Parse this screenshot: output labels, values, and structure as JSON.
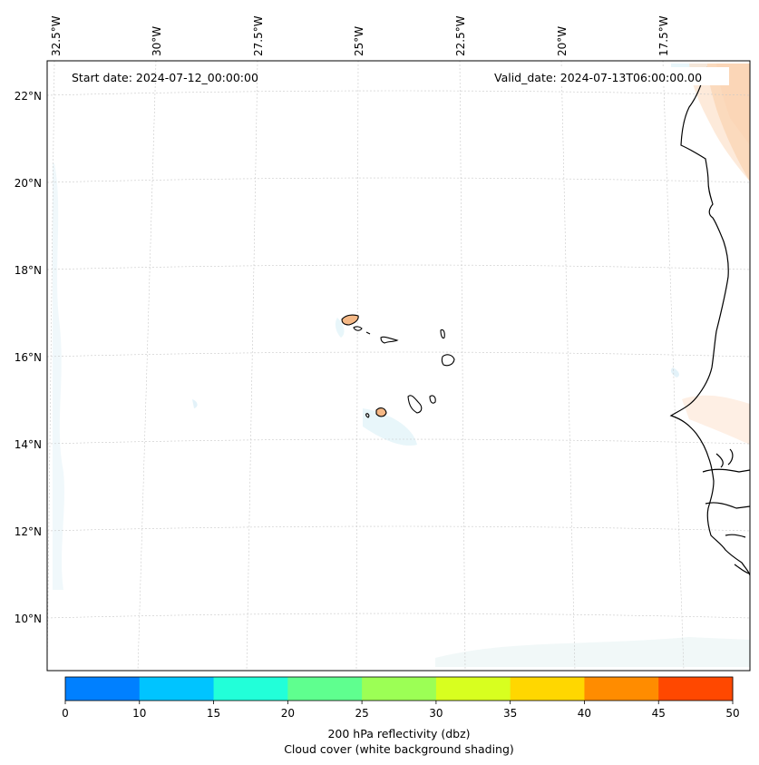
{
  "map": {
    "start_label": "Start date: 2024-07-12_00:00:00",
    "valid_label": "Valid_date: 2024-07-13T06:00:00.00",
    "lon_ticks": [
      "32.5°W",
      "30°W",
      "27.5°W",
      "25°W",
      "22.5°W",
      "20°W",
      "17.5°W"
    ],
    "lat_ticks": [
      "22°N",
      "20°N",
      "18°N",
      "16°N",
      "14°N",
      "12°N",
      "10°N"
    ],
    "grid": true
  },
  "colorbar": {
    "ticks": [
      "0",
      "10",
      "15",
      "20",
      "25",
      "30",
      "35",
      "40",
      "45",
      "50"
    ],
    "colors": [
      "#0080ff",
      "#00c4ff",
      "#22ffd9",
      "#5fff8f",
      "#9cff55",
      "#d8ff1f",
      "#ffd700",
      "#ff8c00",
      "#ff4800"
    ],
    "label_line1": "200 hPa reflectivity (dbz)",
    "label_line2": "Cloud cover (white background shading)"
  }
}
